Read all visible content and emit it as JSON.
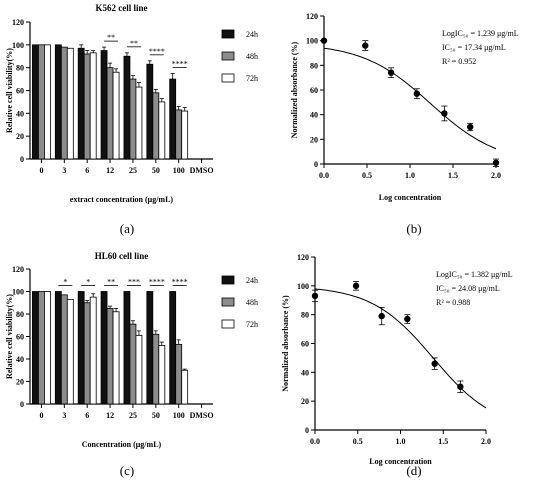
{
  "figure": {
    "panel_labels": [
      "(a)",
      "(b)",
      "(c)",
      "(d)"
    ]
  },
  "chart_data": [
    {
      "type": "bar",
      "title": "K562 cell line",
      "xlabel": "extract concentration (μg/mL)",
      "ylabel": "Relative cell viability(%)",
      "ylim": [
        0,
        120
      ],
      "yticks": [
        "0",
        "20",
        "40",
        "60",
        "80",
        "100",
        "120"
      ],
      "categories": [
        "0",
        "3",
        "6",
        "12",
        "25",
        "50",
        "100",
        "DMSO"
      ],
      "series": [
        {
          "name": "24h",
          "color": "#111111",
          "values": [
            100,
            100,
            97,
            95,
            90,
            83,
            70,
            0
          ],
          "err": [
            0,
            0,
            3,
            3,
            3,
            3,
            5,
            0
          ]
        },
        {
          "name": "48h",
          "color": "#8c8c8c",
          "values": [
            100,
            98,
            92,
            80,
            70,
            58,
            43,
            0
          ],
          "err": [
            0,
            0,
            3,
            4,
            3,
            3,
            3,
            0
          ]
        },
        {
          "name": "72h",
          "color": "#ffffff",
          "values": [
            100,
            97,
            93,
            76,
            63,
            50,
            42,
            0
          ],
          "err": [
            0,
            0,
            2,
            3,
            4,
            3,
            3,
            0
          ]
        }
      ],
      "significance": [
        "**",
        "**",
        "****",
        "****"
      ],
      "legend": "right"
    },
    {
      "type": "scatter",
      "xlabel": "Log concentration",
      "ylabel": "Normalized absorbance (%)",
      "xlim": [
        0,
        2
      ],
      "ylim": [
        0,
        120
      ],
      "xticks": [
        "0.0",
        "0.5",
        "1.0",
        "1.5",
        "2.0"
      ],
      "yticks": [
        "0",
        "20",
        "40",
        "60",
        "80",
        "100",
        "120"
      ],
      "points": [
        {
          "x": 0.0,
          "y": 100,
          "err": 0
        },
        {
          "x": 0.48,
          "y": 96,
          "err": 4
        },
        {
          "x": 0.78,
          "y": 74,
          "err": 4
        },
        {
          "x": 1.08,
          "y": 57,
          "err": 4
        },
        {
          "x": 1.4,
          "y": 41,
          "err": 6
        },
        {
          "x": 1.7,
          "y": 30,
          "err": 3
        },
        {
          "x": 2.0,
          "y": 1,
          "err": 3
        }
      ],
      "fit": {
        "top": 98,
        "bottom": 0,
        "logIC50": 1.239,
        "hill": 1.1
      },
      "annotations": {
        "logic50": "LogIC₅₀ = 1.239 μg/mL",
        "ic50": "IC₅₀ = 17.34 μg/mL",
        "r2": "R² = 0.952"
      }
    },
    {
      "type": "bar",
      "title": "HL60 cell line",
      "xlabel": "Concentration (μg/mL)",
      "ylabel": "Relative cell viability(%)",
      "ylim": [
        0,
        120
      ],
      "yticks": [
        "0",
        "20",
        "40",
        "60",
        "80",
        "100",
        "120"
      ],
      "categories": [
        "0",
        "3",
        "6",
        "12",
        "25",
        "50",
        "100",
        "DMSO"
      ],
      "series": [
        {
          "name": "24h",
          "color": "#111111",
          "values": [
            100,
            100,
            100,
            100,
            100,
            100,
            100,
            0
          ],
          "err": [
            0,
            0,
            0,
            0,
            0,
            0,
            0,
            0
          ]
        },
        {
          "name": "48h",
          "color": "#8c8c8c",
          "values": [
            100,
            97,
            90,
            85,
            71,
            62,
            53,
            0
          ],
          "err": [
            0,
            0,
            2,
            2,
            3,
            3,
            4,
            0
          ]
        },
        {
          "name": "72h",
          "color": "#ffffff",
          "values": [
            100,
            93,
            95,
            82,
            61,
            52,
            30,
            0
          ],
          "err": [
            0,
            0,
            3,
            3,
            4,
            3,
            1,
            0
          ]
        }
      ],
      "significance": [
        "*",
        "*",
        "**",
        "***",
        "****",
        "****"
      ],
      "legend": "right"
    },
    {
      "type": "scatter",
      "xlabel": "Log concentration",
      "ylabel": "Normalized absorbance (%)",
      "xlim": [
        0,
        2
      ],
      "ylim": [
        0,
        120
      ],
      "xticks": [
        "0.0",
        "0.5",
        "1.0",
        "1.5",
        "2.0"
      ],
      "yticks": [
        "0",
        "20",
        "40",
        "60",
        "80",
        "100",
        "120"
      ],
      "points": [
        {
          "x": 0.0,
          "y": 93,
          "err": 4
        },
        {
          "x": 0.48,
          "y": 100,
          "err": 3
        },
        {
          "x": 0.78,
          "y": 79,
          "err": 6
        },
        {
          "x": 1.08,
          "y": 77,
          "err": 3
        },
        {
          "x": 1.4,
          "y": 46,
          "err": 4
        },
        {
          "x": 1.7,
          "y": 30,
          "err": 4
        }
      ],
      "fit": {
        "top": 100,
        "bottom": 0,
        "logIC50": 1.382,
        "hill": 1.2
      },
      "annotations": {
        "logic50": "LogIC₅₀ = 1.382 μg/mL",
        "ic50": "IC₅₀ = 24.08 μg/mL",
        "r2": "R² = 0.988"
      }
    }
  ]
}
